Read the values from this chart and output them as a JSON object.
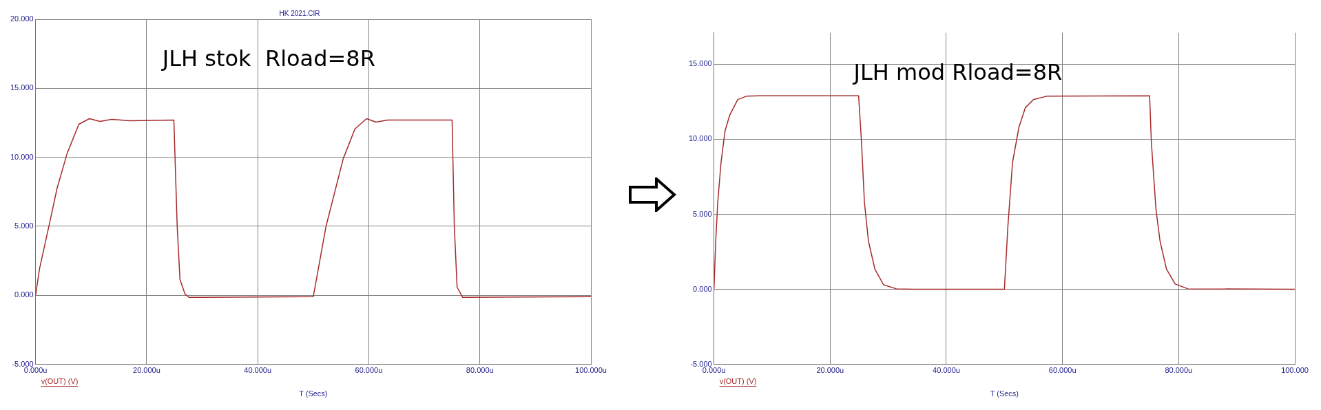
{
  "chart_data": [
    {
      "type": "line",
      "title": "HK 2021.CIR",
      "xlabel": "T (Secs)",
      "annotations": [
        "JLH stok  Rload=8R"
      ],
      "legend": "bottom left",
      "grid": true,
      "marker": "none",
      "xlim": [
        0,
        100
      ],
      "xticks": [
        {
          "value": 0,
          "label": "0.000u"
        },
        {
          "value": 20,
          "label": "20.000u"
        },
        {
          "value": 40,
          "label": "40.000u"
        },
        {
          "value": 60,
          "label": "60.000u"
        },
        {
          "value": 80,
          "label": "80.000u"
        },
        {
          "value": 100,
          "label": "100.000u"
        }
      ],
      "ylim": [
        -5,
        20
      ],
      "yticks": [
        {
          "value": -5,
          "label": "-5.000"
        },
        {
          "value": 0,
          "label": "0.000"
        },
        {
          "value": 5,
          "label": "5.000"
        },
        {
          "value": 10,
          "label": "10.000"
        },
        {
          "value": 15,
          "label": "15.000"
        },
        {
          "value": 20,
          "label": "20.000"
        }
      ],
      "series": [
        {
          "name": "v(OUT) (V)",
          "color": "#a52a2a",
          "x": [
            0,
            0.7,
            2.4,
            3.9,
            5.7,
            7.8,
            9.7,
            11.6,
            13.7,
            17,
            24.9,
            25.5,
            26,
            26.9,
            27.6,
            30,
            50,
            52.3,
            55.4,
            57.5,
            59.6,
            61.3,
            63.4,
            75,
            75.4,
            75.9,
            76.9,
            100
          ],
          "values": [
            0,
            1.9,
            5,
            7.8,
            10.3,
            12.4,
            12.8,
            12.6,
            12.75,
            12.65,
            12.7,
            5,
            1.15,
            0.1,
            -0.15,
            -0.15,
            -0.1,
            5,
            9.9,
            12.05,
            12.8,
            12.55,
            12.7,
            12.7,
            5,
            0.6,
            -0.15,
            -0.1
          ]
        }
      ]
    },
    {
      "type": "line",
      "xlabel": "T (Secs)",
      "annotations": [
        "JLH mod Rload=8R"
      ],
      "legend": "bottom left",
      "grid": true,
      "marker": "none",
      "xlim": [
        0,
        100
      ],
      "xticks": [
        {
          "value": 0,
          "label": "0.000u"
        },
        {
          "value": 20,
          "label": "20.000u"
        },
        {
          "value": 40,
          "label": "40.000u"
        },
        {
          "value": 60,
          "label": "60.000u"
        },
        {
          "value": 80,
          "label": "80.000u"
        },
        {
          "value": 100,
          "label": "100.000"
        }
      ],
      "ylim": [
        -5,
        17.1
      ],
      "yticks": [
        {
          "value": -5,
          "label": "-5.000"
        },
        {
          "value": 0,
          "label": "0.000"
        },
        {
          "value": 5,
          "label": "5.000"
        },
        {
          "value": 10,
          "label": "10.000"
        },
        {
          "value": 15,
          "label": "15.000"
        }
      ],
      "series": [
        {
          "name": "v(OUT) (V)",
          "color": "#a52a2a",
          "x": [
            0,
            0.3,
            0.65,
            1.2,
            1.9,
            2.7,
            4.1,
            5.6,
            7.8,
            24.9,
            25.4,
            25.9,
            26.6,
            27.7,
            29.2,
            31.4,
            34.4,
            50,
            50.6,
            51.4,
            52.5,
            53.6,
            55,
            57.3,
            75,
            75.3,
            76.1,
            76.8,
            77.9,
            79.4,
            81.6,
            100
          ],
          "values": [
            0,
            3.2,
            5.8,
            8.4,
            10.55,
            11.6,
            12.65,
            12.87,
            12.9,
            12.9,
            9.8,
            5.8,
            3.2,
            1.35,
            0.3,
            0.03,
            0,
            0,
            4.2,
            8.45,
            10.8,
            12.1,
            12.65,
            12.87,
            12.9,
            9.8,
            5.3,
            3.2,
            1.35,
            0.35,
            0.03,
            0
          ]
        }
      ]
    }
  ]
}
